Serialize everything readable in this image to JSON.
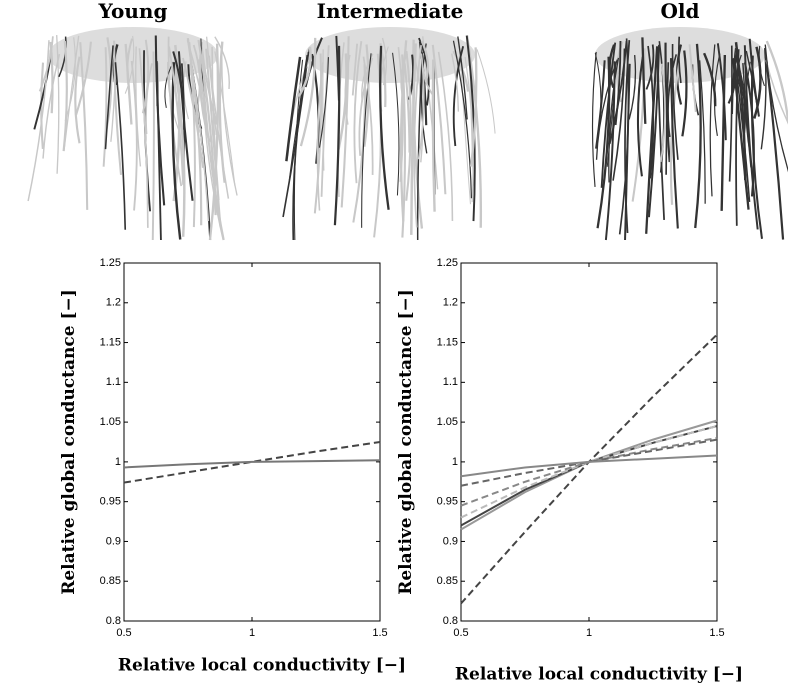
{
  "images": {
    "labels": [
      "Young",
      "Intermediate",
      "Old"
    ]
  },
  "chart_data": [
    {
      "type": "line",
      "xlabel": "Relative local conductivity [−]",
      "ylabel": "Relative global conductance [−]",
      "xlim": [
        0.5,
        1.5
      ],
      "ylim": [
        0.8,
        1.25
      ],
      "xticks": [
        0.5,
        1,
        1.5
      ],
      "yticks": [
        0.8,
        0.85,
        0.9,
        0.95,
        1,
        1.05,
        1.1,
        1.15,
        1.2,
        1.25
      ],
      "x": [
        0.5,
        0.75,
        1,
        1.25,
        1.5
      ],
      "series": [
        {
          "color": "#444444",
          "dash": true,
          "values": [
            0.974,
            0.987,
            1,
            1.013,
            1.025
          ]
        },
        {
          "color": "#777777",
          "dash": false,
          "values": [
            0.993,
            0.997,
            1,
            1.001,
            1.002
          ]
        }
      ]
    },
    {
      "type": "line",
      "xlabel": "Relative local conductivity [−]",
      "ylabel": "Relative global conductance [−]",
      "xlim": [
        0.5,
        1.5
      ],
      "ylim": [
        0.8,
        1.25
      ],
      "xticks": [
        0.5,
        1,
        1.5
      ],
      "yticks": [
        0.8,
        0.85,
        0.9,
        0.95,
        1,
        1.05,
        1.1,
        1.15,
        1.2,
        1.25
      ],
      "x": [
        0.5,
        0.75,
        1,
        1.25,
        1.5
      ],
      "series": [
        {
          "color": "#444444",
          "dash": true,
          "values": [
            0.822,
            0.912,
            1,
            1.082,
            1.16
          ]
        },
        {
          "color": "#999999",
          "dash": false,
          "values": [
            0.915,
            0.962,
            1,
            1.028,
            1.052
          ]
        },
        {
          "color": "#444444",
          "dash": false,
          "values": [
            0.92,
            0.965,
            1,
            1.024,
            1.045
          ]
        },
        {
          "color": "#bbbbbb",
          "dash": true,
          "values": [
            0.93,
            0.968,
            1,
            1.024,
            1.045
          ]
        },
        {
          "color": "#888888",
          "dash": true,
          "values": [
            0.945,
            0.975,
            1,
            1.016,
            1.03
          ]
        },
        {
          "color": "#666666",
          "dash": true,
          "values": [
            0.97,
            0.986,
            1,
            1.014,
            1.028
          ]
        },
        {
          "color": "#888888",
          "dash": false,
          "values": [
            0.982,
            0.993,
            1,
            1.004,
            1.008
          ]
        }
      ]
    }
  ]
}
